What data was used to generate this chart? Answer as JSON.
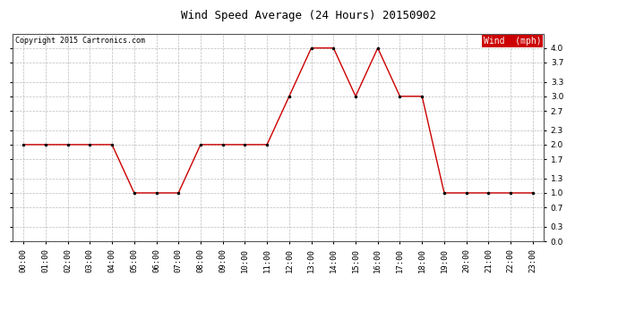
{
  "title": "Wind Speed Average (24 Hours) 20150902",
  "copyright_text": "Copyright 2015 Cartronics.com",
  "legend_label": "Wind  (mph)",
  "legend_bg": "#cc0000",
  "legend_text_color": "#ffffff",
  "hours": [
    "00:00",
    "01:00",
    "02:00",
    "03:00",
    "04:00",
    "05:00",
    "06:00",
    "07:00",
    "08:00",
    "09:00",
    "10:00",
    "11:00",
    "12:00",
    "13:00",
    "14:00",
    "15:00",
    "16:00",
    "17:00",
    "18:00",
    "19:00",
    "20:00",
    "21:00",
    "22:00",
    "23:00"
  ],
  "values": [
    2.0,
    2.0,
    2.0,
    2.0,
    2.0,
    1.0,
    1.0,
    1.0,
    2.0,
    2.0,
    2.0,
    2.0,
    3.0,
    4.0,
    4.0,
    3.0,
    4.0,
    3.0,
    3.0,
    1.0,
    1.0,
    1.0,
    1.0,
    1.0
  ],
  "line_color": "#cc0000",
  "marker_color": "#000000",
  "background_color": "#ffffff",
  "grid_color": "#bbbbbb",
  "ylim": [
    0.0,
    4.3
  ],
  "yticks": [
    0.0,
    0.3,
    0.7,
    1.0,
    1.3,
    1.7,
    2.0,
    2.3,
    2.7,
    3.0,
    3.3,
    3.7,
    4.0
  ],
  "title_fontsize": 9,
  "tick_fontsize": 6.5,
  "copyright_fontsize": 6,
  "legend_fontsize": 7
}
